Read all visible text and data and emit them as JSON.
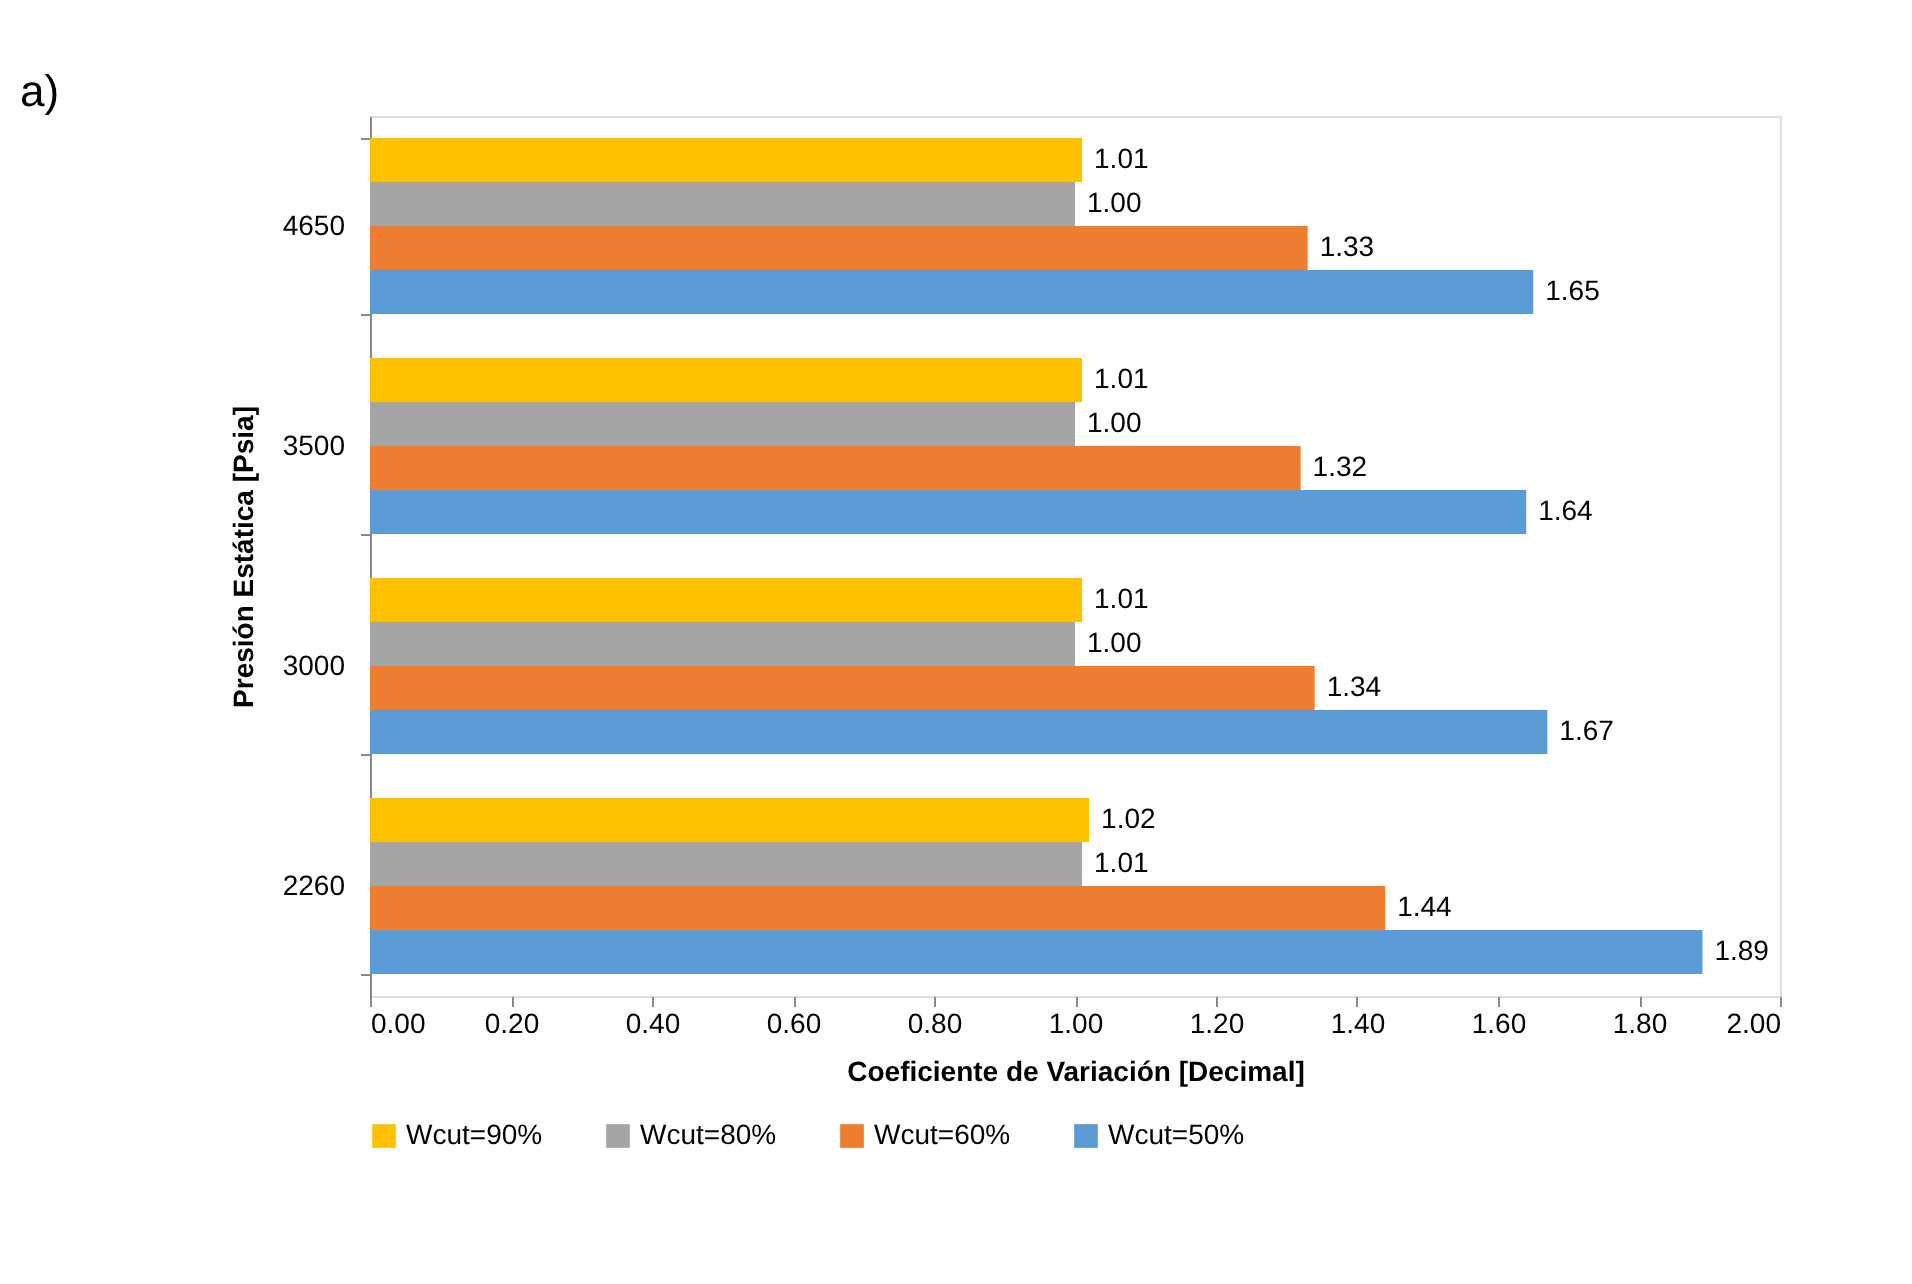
{
  "chart_data": {
    "type": "bar",
    "orientation": "horizontal",
    "xlabel": "Coeficiente de Variación [Decimal]",
    "ylabel": "Presión Estática [Psia]",
    "annotations": [
      "a)"
    ],
    "categories": [
      "4650",
      "3500",
      "3000",
      "2260"
    ],
    "series": [
      {
        "name": "Wcut=90%",
        "color": "#ffc000",
        "values": [
          1.01,
          1.01,
          1.01,
          1.02
        ],
        "value_labels": [
          "1.01",
          "1.01",
          "1.01",
          "1.02"
        ]
      },
      {
        "name": "Wcut=80%",
        "color": "#a5a5a5",
        "values": [
          1.0,
          1.0,
          1.0,
          1.01
        ],
        "value_labels": [
          "1.00",
          "1.00",
          "1.00",
          "1.01"
        ]
      },
      {
        "name": "Wcut=60%",
        "color": "#ed7d31",
        "values": [
          1.33,
          1.32,
          1.34,
          1.44
        ],
        "value_labels": [
          "1.33",
          "1.32",
          "1.34",
          "1.44"
        ]
      },
      {
        "name": "Wcut=50%",
        "color": "#5b9bd5",
        "values": [
          1.65,
          1.64,
          1.67,
          1.89
        ],
        "value_labels": [
          "1.65",
          "1.64",
          "1.67",
          "1.89"
        ]
      }
    ],
    "xlim": [
      0,
      2
    ],
    "xticks": [
      {
        "value": 0,
        "label": "0.00"
      },
      {
        "value": 0.2,
        "label": "0.20"
      },
      {
        "value": 0.4,
        "label": "0.40"
      },
      {
        "value": 0.6,
        "label": "0.60"
      },
      {
        "value": 0.8,
        "label": "0.80"
      },
      {
        "value": 1.0,
        "label": "1.00"
      },
      {
        "value": 1.2,
        "label": "1.20"
      },
      {
        "value": 1.4,
        "label": "1.40"
      },
      {
        "value": 1.6,
        "label": "1.60"
      },
      {
        "value": 1.8,
        "label": "1.80"
      },
      {
        "value": 2.0,
        "label": "2.00"
      }
    ],
    "grid": false,
    "legend": "bottom"
  }
}
